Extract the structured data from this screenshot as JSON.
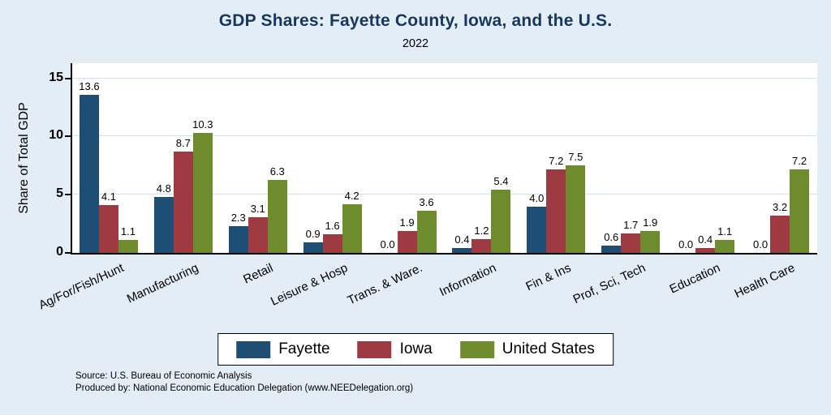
{
  "title": "GDP Shares: Fayette County, Iowa, and the U.S.",
  "subtitle": "2022",
  "ylabel": "Share of Total GDP",
  "source_line1": "Source: U.S. Bureau of Economic Analysis",
  "source_line2": "Produced by: National Economic Education Delegation (www.NEEDelegation.org)",
  "colors": {
    "background": "#e3edf6",
    "plot_background": "#ffffff",
    "gridline": "#cfe2f1",
    "title_text": "#17375e"
  },
  "chart_data": {
    "type": "bar",
    "title": "GDP Shares: Fayette County, Iowa, and the U.S.",
    "subtitle": "2022",
    "ylabel": "Share of Total GDP",
    "xlabel": "",
    "ylim": [
      0,
      16.3
    ],
    "yticks": [
      0,
      5,
      10,
      15
    ],
    "grid": true,
    "legend_position": "bottom",
    "value_labels": true,
    "categories": [
      "Ag/For/Fish/Hunt",
      "Manufacturing",
      "Retail",
      "Leisure & Hosp",
      "Trans. & Ware.",
      "Information",
      "Fin & Ins",
      "Prof, Sci, Tech",
      "Education",
      "Health Care"
    ],
    "series": [
      {
        "name": "Fayette",
        "color": "#1f4e74",
        "values": [
          13.6,
          4.8,
          2.3,
          0.9,
          0.0,
          0.4,
          4.0,
          0.6,
          0.0,
          0.0
        ]
      },
      {
        "name": "Iowa",
        "color": "#9e3a42",
        "values": [
          4.1,
          8.7,
          3.1,
          1.6,
          1.9,
          1.2,
          7.2,
          1.7,
          0.4,
          3.2
        ]
      },
      {
        "name": "United States",
        "color": "#6e8b2e",
        "values": [
          1.1,
          10.3,
          6.3,
          4.2,
          3.6,
          5.4,
          7.5,
          1.9,
          1.1,
          7.2
        ]
      }
    ]
  }
}
